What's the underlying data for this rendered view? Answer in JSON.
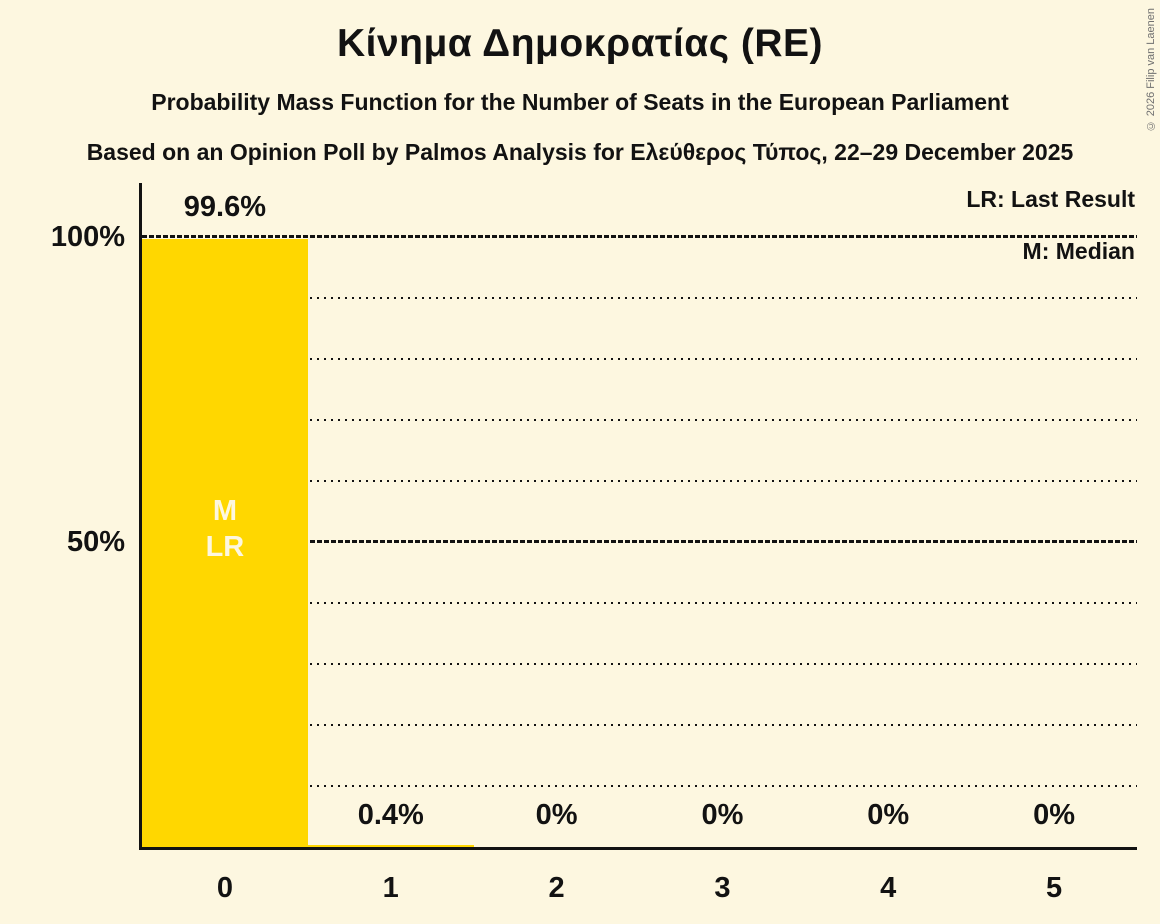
{
  "header": {
    "title": "Κίνημα Δημοκρατίας (RE)",
    "subtitle": "Probability Mass Function for the Number of Seats in the European Parliament",
    "source_line": "Based on an Opinion Poll by Palmos Analysis for Ελεύθερος Τύπος, 22–29 December 2025",
    "copyright": "© 2026 Filip van Laenen"
  },
  "legend": {
    "last_result": "LR: Last Result",
    "median": "M: Median"
  },
  "yaxis": {
    "tick_100": "100%",
    "tick_50": "50%"
  },
  "chart_data": {
    "type": "bar",
    "title": "Κίνημα Δημοκρατίας (RE)",
    "xlabel": "",
    "ylabel": "",
    "categories": [
      "0",
      "1",
      "2",
      "3",
      "4",
      "5"
    ],
    "values": [
      99.6,
      0.4,
      0,
      0,
      0,
      0
    ],
    "value_labels": [
      "99.6%",
      "0.4%",
      "0%",
      "0%",
      "0%",
      "0%"
    ],
    "ylim": [
      0,
      100
    ],
    "ytick_labels": [
      "100%",
      "50%"
    ],
    "grid": "horizontal dotted every 10%, dense-dashed at 50% and 100%",
    "legend_position": "top-right",
    "annotations": {
      "median_label": "M",
      "last_result_label": "LR",
      "annotated_category": "0"
    }
  },
  "colors": {
    "background": "#FDF7E0",
    "bar": "#FFD700",
    "text": "#121212",
    "bar_label": "#FDF7E0",
    "copyright": "#707070"
  }
}
